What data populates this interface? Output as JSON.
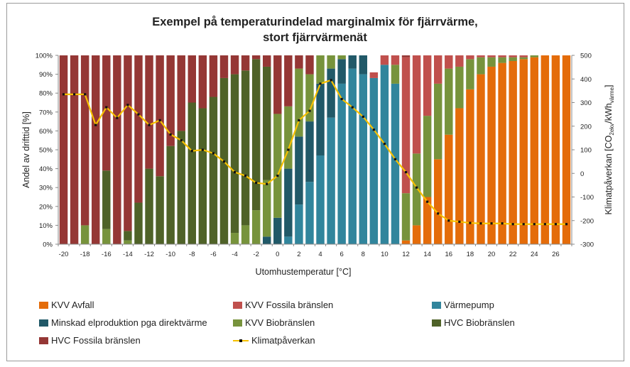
{
  "chart_data": {
    "type": "bar",
    "title_line1": "Exempel på temperaturindelad marginalmix för fjärrvärme,",
    "title_line2": "stort fjärrvärmenät",
    "xlabel": "Utomhustemperatur [°C]",
    "ylabel_left": "Andel av drifttid [%]",
    "ylabel_right_main": "Klimatpåverkan [CO",
    "ylabel_right_sub1": "2ekv",
    "ylabel_right_mid": "/kWh",
    "ylabel_right_sub2": "värme",
    "ylabel_right_end": "]",
    "left_ticks": [
      "0%",
      "10%",
      "20%",
      "30%",
      "40%",
      "50%",
      "60%",
      "70%",
      "80%",
      "90%",
      "100%"
    ],
    "right_ticks": [
      "-300",
      "-200",
      "-100",
      "0",
      "100",
      "200",
      "300",
      "400",
      "500"
    ],
    "right_range": [
      -300,
      500
    ],
    "x_ticks": [
      "-20",
      "-18",
      "-16",
      "-14",
      "-12",
      "-10",
      "-8",
      "-6",
      "-4",
      "-2",
      "0",
      "2",
      "4",
      "6",
      "8",
      "10",
      "12",
      "14",
      "16",
      "18",
      "20",
      "22",
      "24",
      "26"
    ],
    "categories": [
      -20,
      -19,
      -18,
      -17,
      -16,
      -15,
      -14,
      -13,
      -12,
      -11,
      -10,
      -9,
      -8,
      -7,
      -6,
      -5,
      -4,
      -3,
      -2,
      -1,
      0,
      1,
      2,
      3,
      4,
      5,
      6,
      7,
      8,
      9,
      10,
      11,
      12,
      13,
      14,
      15,
      16,
      17,
      18,
      19,
      20,
      21,
      22,
      23,
      24,
      25,
      26,
      27
    ],
    "series": [
      {
        "name": "KVV Avfall",
        "color": "#e46c0a",
        "values": [
          0,
          0,
          0,
          0,
          0,
          0,
          0,
          0,
          0,
          0,
          0,
          0,
          0,
          0,
          0,
          0,
          0,
          0,
          0,
          0,
          0,
          0,
          0,
          0,
          0,
          0,
          0,
          0,
          0,
          0,
          0,
          0,
          2,
          10,
          25,
          45,
          58,
          72,
          82,
          90,
          94,
          96,
          97,
          98,
          99,
          100,
          100,
          100
        ]
      },
      {
        "name": "Värmepump",
        "color": "#31859c",
        "values": [
          0,
          0,
          0,
          0,
          0,
          0,
          0,
          0,
          0,
          0,
          0,
          0,
          0,
          0,
          0,
          0,
          0,
          0,
          0,
          0,
          0,
          4,
          21,
          33,
          47,
          67,
          85,
          93,
          90,
          88,
          95,
          85,
          0,
          0,
          0,
          0,
          0,
          0,
          0,
          0,
          0,
          0,
          0,
          0,
          0,
          0,
          0,
          0
        ]
      },
      {
        "name": "Minskad elproduktion pga direktvärme",
        "color": "#215968",
        "values": [
          0,
          0,
          0,
          0,
          0,
          0,
          0,
          0,
          0,
          0,
          0,
          0,
          0,
          0,
          0,
          0,
          0,
          0,
          0,
          4,
          14,
          36,
          36,
          32,
          38,
          26,
          13,
          7,
          10,
          0,
          0,
          0,
          0,
          0,
          0,
          0,
          0,
          0,
          0,
          0,
          0,
          0,
          0,
          0,
          0,
          0,
          0,
          0
        ]
      },
      {
        "name": "KVV Biobränslen",
        "color": "#77933c",
        "values": [
          0,
          0,
          10,
          0,
          8,
          0,
          2,
          0,
          0,
          0,
          0,
          0,
          0,
          0,
          0,
          0,
          6,
          10,
          18,
          30,
          55,
          33,
          36,
          25,
          15,
          7,
          2,
          0,
          0,
          0,
          0,
          10,
          25,
          38,
          43,
          40,
          35,
          22,
          16,
          9,
          5,
          3,
          2,
          1,
          1,
          0,
          0,
          0
        ]
      },
      {
        "name": "HVC Biobränslen",
        "color": "#4f6228",
        "values": [
          0,
          0,
          0,
          0,
          31,
          0,
          5,
          22,
          40,
          36,
          52,
          60,
          75,
          72,
          78,
          88,
          84,
          82,
          80,
          60,
          0,
          0,
          0,
          0,
          0,
          0,
          0,
          0,
          0,
          0,
          0,
          0,
          0,
          0,
          0,
          0,
          0,
          0,
          0,
          0,
          0,
          0,
          0,
          0,
          0,
          0,
          0,
          0
        ]
      },
      {
        "name": "KVV Fossila bränslen",
        "color": "#c0504d",
        "values": [
          0,
          0,
          0,
          0,
          0,
          0,
          0,
          0,
          0,
          0,
          0,
          0,
          0,
          0,
          0,
          0,
          0,
          0,
          0,
          0,
          0,
          0,
          0,
          0,
          0,
          0,
          0,
          0,
          0,
          3,
          5,
          5,
          72,
          52,
          32,
          15,
          7,
          6,
          2,
          1,
          1,
          1,
          1,
          1,
          0,
          0,
          0,
          0
        ]
      },
      {
        "name": "HVC Fossila bränslen",
        "color": "#953735",
        "values": [
          100,
          100,
          90,
          100,
          61,
          100,
          93,
          78,
          60,
          64,
          48,
          40,
          25,
          28,
          22,
          12,
          10,
          8,
          2,
          6,
          31,
          27,
          7,
          10,
          0,
          0,
          0,
          0,
          0,
          0,
          0,
          0,
          1,
          0,
          0,
          0,
          0,
          0,
          0,
          0,
          0,
          0,
          0,
          0,
          0,
          0,
          0,
          0
        ]
      }
    ],
    "line": {
      "name": "Klimatpåverkan",
      "color": "#f6c000",
      "values": [
        335,
        335,
        335,
        205,
        280,
        235,
        290,
        250,
        205,
        225,
        165,
        140,
        95,
        100,
        85,
        50,
        5,
        -10,
        -40,
        -45,
        -10,
        100,
        225,
        265,
        380,
        395,
        315,
        280,
        240,
        185,
        125,
        60,
        5,
        -60,
        -120,
        -170,
        -200,
        -205,
        -210,
        -212,
        -212,
        -212,
        -215,
        -215,
        -215,
        -215,
        -215,
        -215
      ]
    },
    "legend": [
      {
        "label": "KVV Avfall",
        "color": "#e46c0a",
        "kind": "box"
      },
      {
        "label": "KVV Fossila bränslen",
        "color": "#c0504d",
        "kind": "box"
      },
      {
        "label": "Värmepump",
        "color": "#31859c",
        "kind": "box"
      },
      {
        "label": "Minskad elproduktion pga direktvärme",
        "color": "#215968",
        "kind": "box"
      },
      {
        "label": "KVV Biobränslen",
        "color": "#77933c",
        "kind": "box"
      },
      {
        "label": "HVC Biobränslen",
        "color": "#4f6228",
        "kind": "box"
      },
      {
        "label": "HVC Fossila bränslen",
        "color": "#953735",
        "kind": "box"
      },
      {
        "label": "Klimatpåverkan",
        "color": "#f6c000",
        "kind": "line"
      }
    ],
    "legend_placement": "bottom",
    "grid": false
  }
}
